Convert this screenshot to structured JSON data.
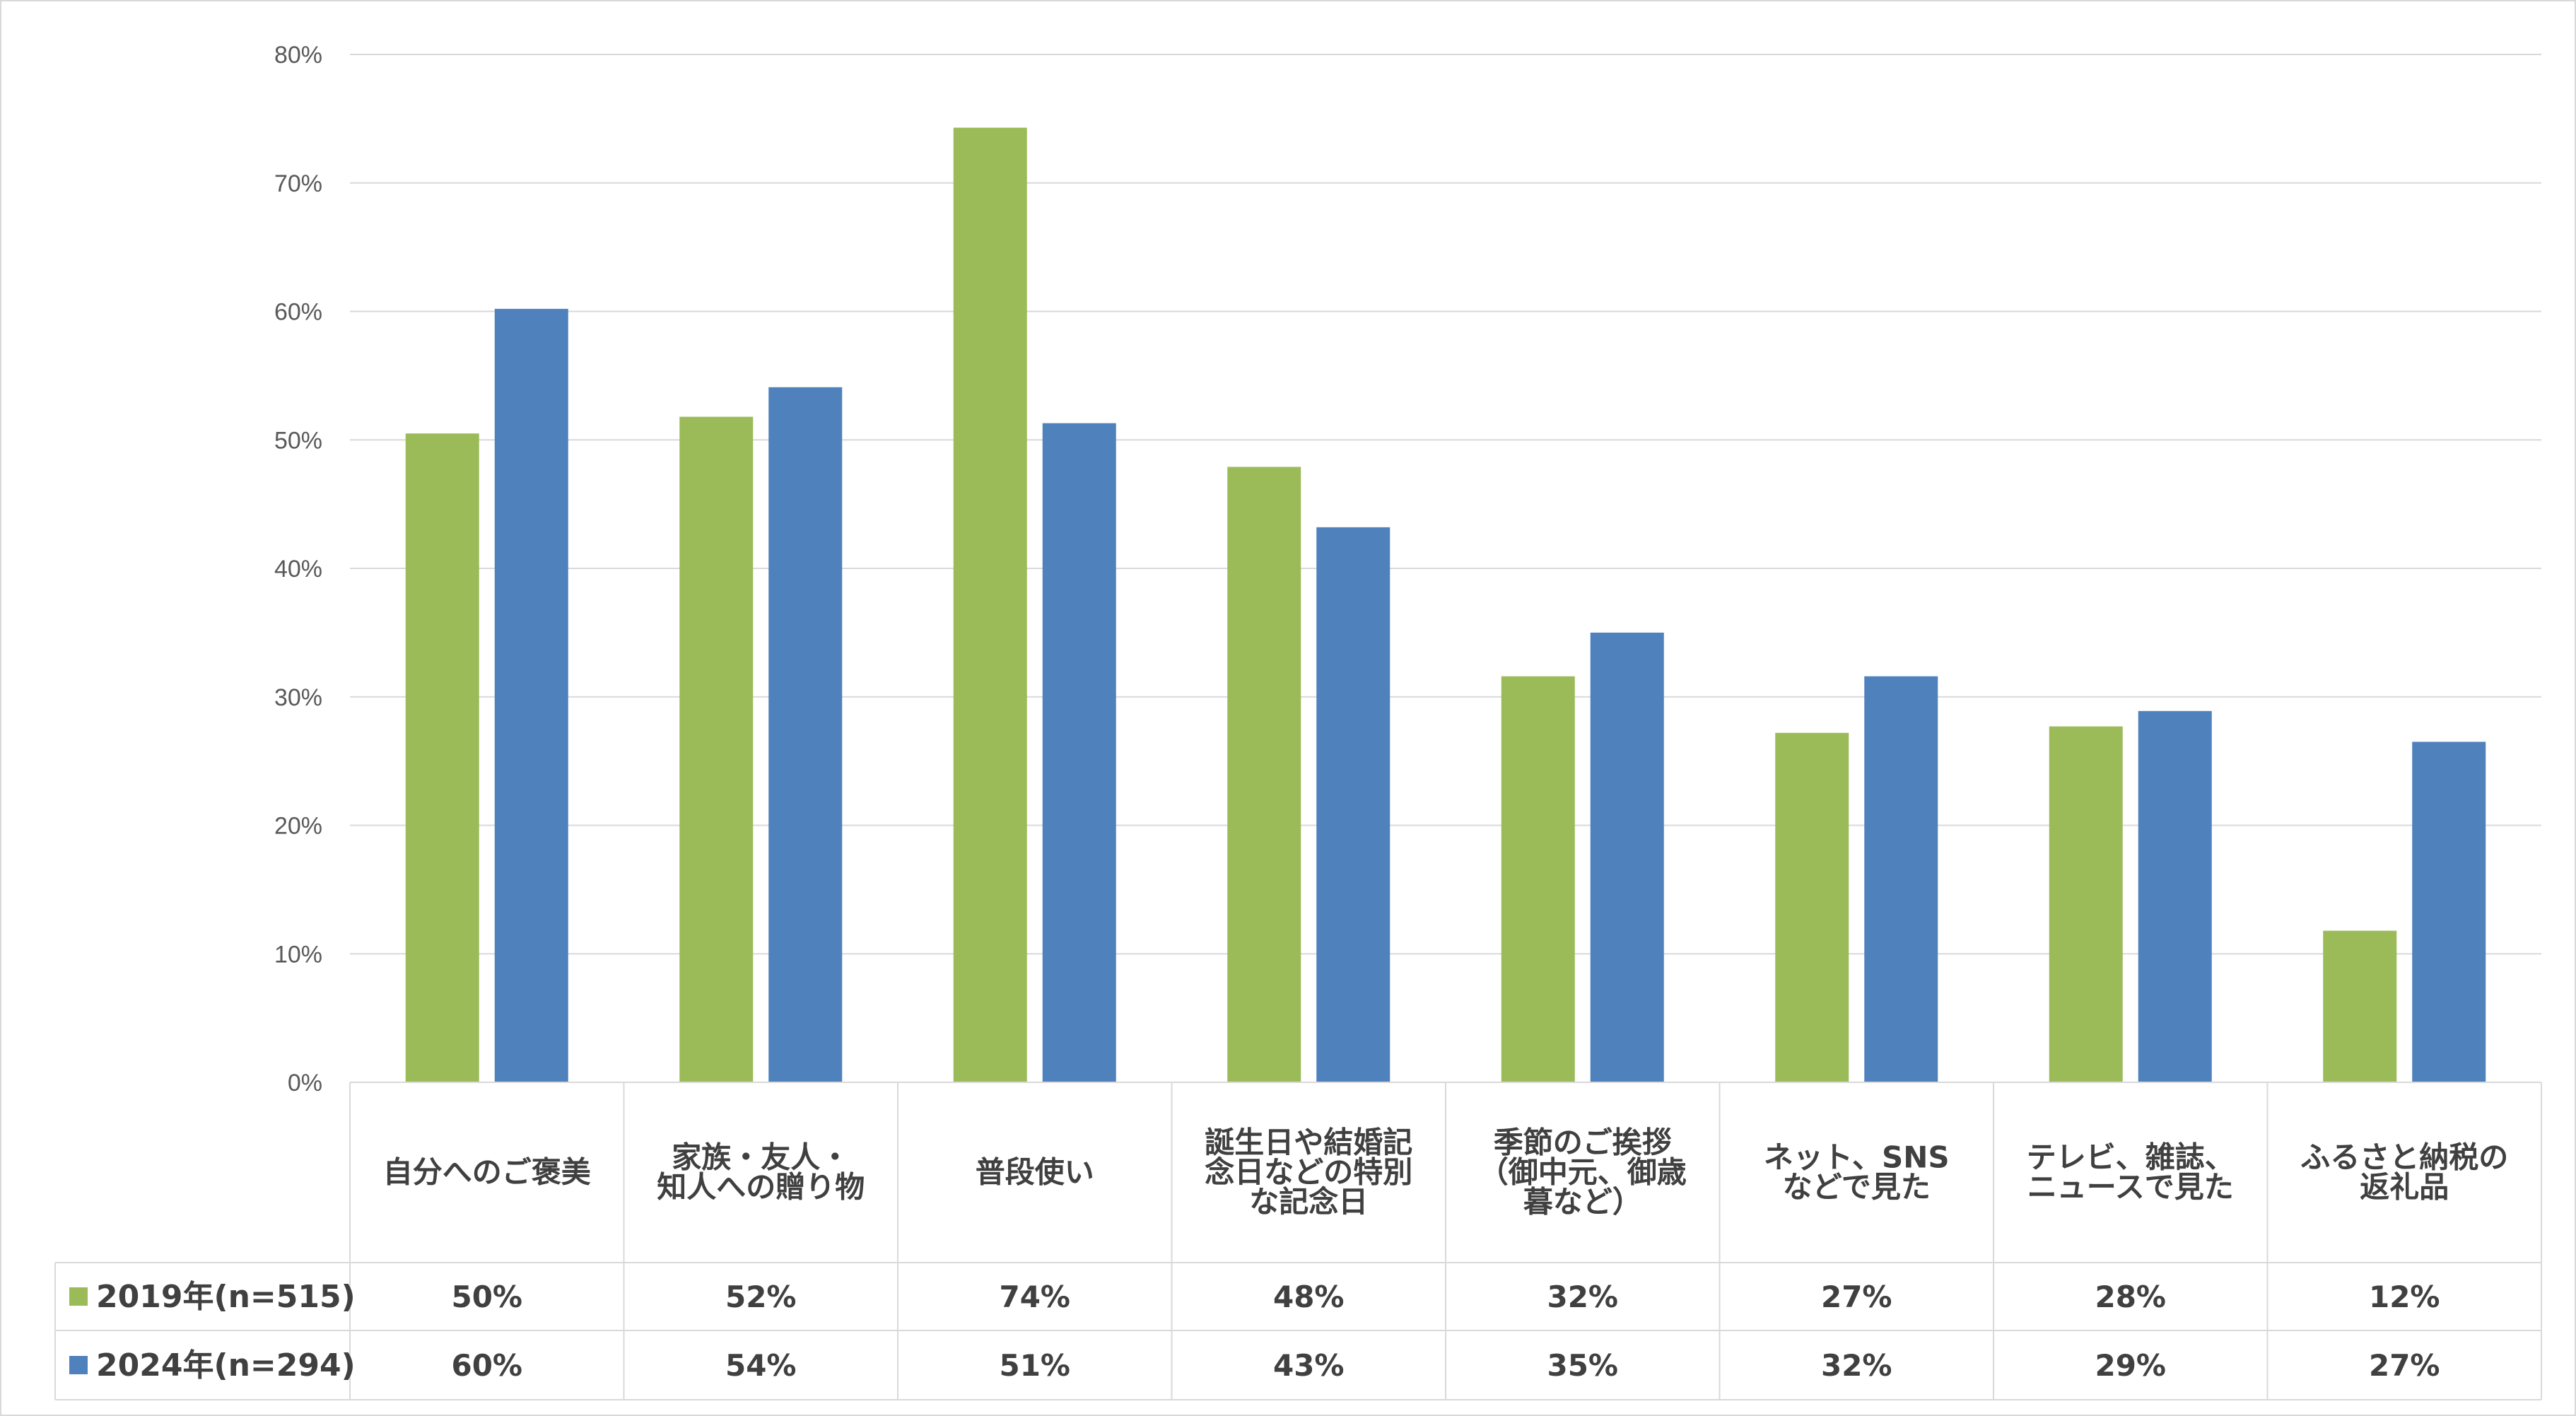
{
  "chart_data": {
    "type": "bar",
    "categories": [
      [
        "自分へのご褒美"
      ],
      [
        "家族・友人・",
        "知人への贈り物"
      ],
      [
        "普段使い"
      ],
      [
        "誕生日や結婚記",
        "念日などの特別",
        "な記念日"
      ],
      [
        "季節のご挨拶",
        "（御中元、御歳",
        "暮など）"
      ],
      [
        "ネット、SNS",
        "などで見た"
      ],
      [
        "テレビ、雑誌、",
        "ニュースで見た"
      ],
      [
        "ふるさと納税の",
        "返礼品"
      ]
    ],
    "series": [
      {
        "name": "2019年(n=515)",
        "color": "#9bbb59",
        "values": [
          50.5,
          51.8,
          74.3,
          47.9,
          31.6,
          27.2,
          27.7,
          11.8
        ],
        "labels": [
          "50%",
          "52%",
          "74%",
          "48%",
          "32%",
          "27%",
          "28%",
          "12%"
        ]
      },
      {
        "name": "2024年(n=294)",
        "color": "#4f81bd",
        "values": [
          60.2,
          54.1,
          51.3,
          43.2,
          35.0,
          31.6,
          28.9,
          26.5
        ],
        "labels": [
          "60%",
          "54%",
          "51%",
          "43%",
          "35%",
          "32%",
          "29%",
          "27%"
        ]
      }
    ],
    "yticks": [
      "0%",
      "10%",
      "20%",
      "30%",
      "40%",
      "50%",
      "60%",
      "70%",
      "80%"
    ],
    "ylim": [
      0,
      80
    ],
    "grid": true,
    "legend": "data-table-left",
    "title": "",
    "xlabel": "",
    "ylabel": ""
  }
}
